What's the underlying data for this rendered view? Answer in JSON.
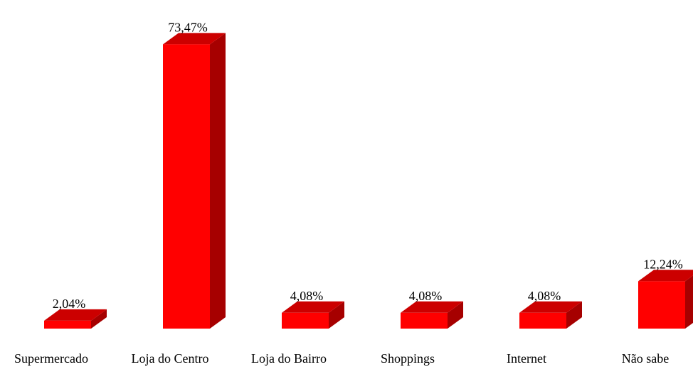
{
  "chart_data": {
    "type": "bar3d",
    "categories": [
      "Supermercado",
      "Loja do Centro",
      "Loja do Bairro",
      "Shoppings",
      "Internet",
      "Não sabe"
    ],
    "values": [
      2.04,
      73.47,
      4.08,
      4.08,
      4.08,
      12.24
    ],
    "value_labels": [
      "2,04%",
      "73,47%",
      "4,08%",
      "4,08%",
      "4,08%",
      "12,24%"
    ],
    "color": "#ff0000"
  }
}
